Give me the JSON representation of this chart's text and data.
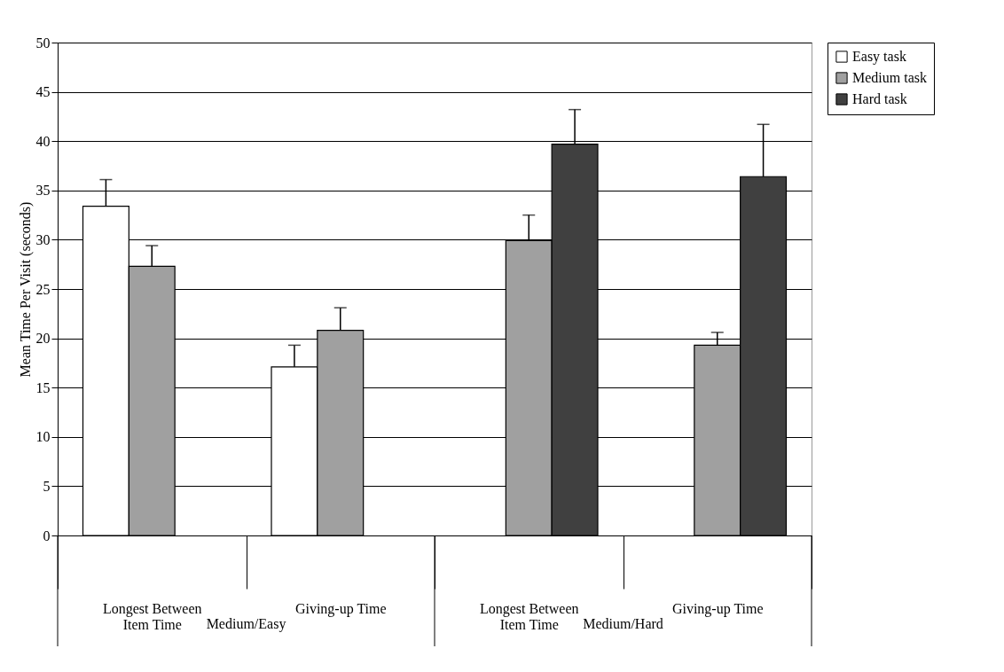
{
  "chart_data": {
    "type": "bar",
    "ylabel": "Mean Time Per Visit (seconds)",
    "categories": [
      "Longest Between Item Time",
      "Giving-up Time",
      "Longest Between Item Time",
      "Giving-up Time"
    ],
    "series": [
      {
        "name": "Easy task",
        "color": "#ffffff",
        "values": [
          33.4,
          17.1,
          null,
          null
        ],
        "errors": [
          [
            33.4,
            36.1
          ],
          [
            17.1,
            19.3
          ],
          null,
          null
        ]
      },
      {
        "name": "Medium task",
        "color": "#a0a0a0",
        "values": [
          27.3,
          20.8,
          29.9,
          19.3
        ],
        "errors": [
          [
            27.3,
            29.4
          ],
          [
            20.8,
            23.1
          ],
          [
            29.9,
            32.5
          ],
          [
            19.3,
            20.6
          ]
        ]
      },
      {
        "name": "Hard task",
        "color": "#404040",
        "values": [
          null,
          null,
          39.7,
          36.4
        ],
        "errors": [
          null,
          null,
          [
            39.7,
            43.2
          ],
          [
            36.4,
            41.7
          ]
        ]
      }
    ],
    "ylim": [
      0,
      50
    ],
    "yticks": [
      0,
      5,
      10,
      15,
      20,
      25,
      30,
      35,
      40,
      45,
      50
    ],
    "grid": "y",
    "legend": "right",
    "annotations": [
      "Medium/Easy",
      "Medium/Hard"
    ]
  }
}
